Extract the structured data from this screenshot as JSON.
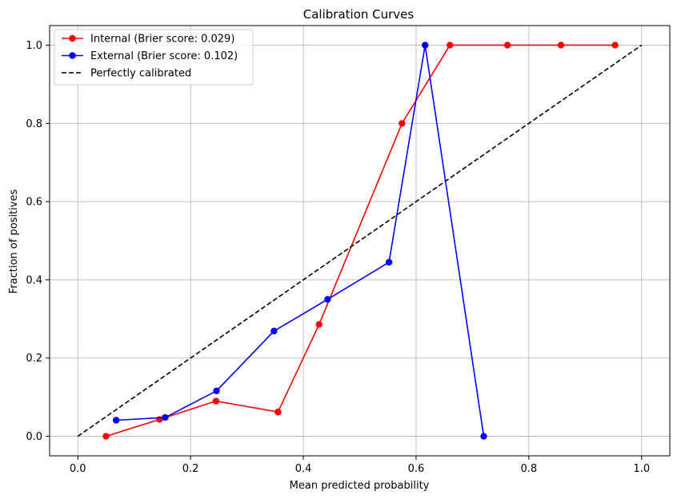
{
  "chart_data": {
    "type": "line",
    "title": "Calibration Curves",
    "xlabel": "Mean predicted probability",
    "ylabel": "Fraction of positives",
    "xlim": [
      -0.05,
      1.05
    ],
    "ylim": [
      -0.05,
      1.05
    ],
    "xticks": [
      "0.0",
      "0.2",
      "0.4",
      "0.6",
      "0.8",
      "1.0"
    ],
    "yticks": [
      "0.0",
      "0.2",
      "0.4",
      "0.6",
      "0.8",
      "1.0"
    ],
    "grid": true,
    "legend_position": "top-left",
    "series": [
      {
        "name": "Internal (Brier score: 0.029)",
        "color": "#ff0000",
        "marker": "circle",
        "linestyle": "solid",
        "x": [
          0.05,
          0.145,
          0.245,
          0.355,
          0.428,
          0.575,
          0.66,
          0.762,
          0.857,
          0.953
        ],
        "y": [
          0.0,
          0.043,
          0.09,
          0.062,
          0.286,
          0.8,
          1.0,
          1.0,
          1.0,
          1.0
        ]
      },
      {
        "name": "External (Brier score: 0.102)",
        "color": "#0000ff",
        "marker": "circle",
        "linestyle": "solid",
        "x": [
          0.068,
          0.155,
          0.246,
          0.348,
          0.443,
          0.552,
          0.616,
          0.72
        ],
        "y": [
          0.041,
          0.048,
          0.116,
          0.269,
          0.35,
          0.445,
          1.0,
          0.0
        ]
      },
      {
        "name": "Perfectly calibrated",
        "color": "#000000",
        "marker": "none",
        "linestyle": "dashed",
        "x": [
          0.0,
          1.0
        ],
        "y": [
          0.0,
          1.0
        ]
      }
    ]
  }
}
